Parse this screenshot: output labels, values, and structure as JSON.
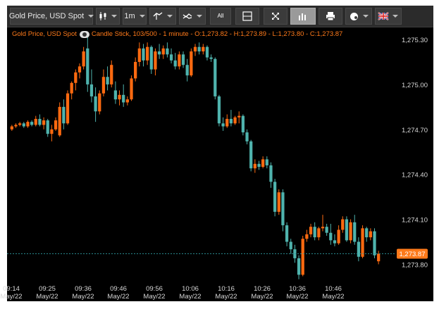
{
  "toolbar": {
    "instrument": "Gold Price, USD Spot",
    "candle_icon": "candlestick-icon",
    "interval": "1m",
    "indicators_icon": "indicators-icon",
    "compare_icon": "compare-icon",
    "fullscreen_label": "All",
    "crosshair_icon": "crosshair-icon",
    "expand_icon": "expand-icon",
    "bars_icon": "bar-chart-icon",
    "print_icon": "print-icon",
    "settings_icon": "palette-icon",
    "language_icon": "uk-flag-icon"
  },
  "legend": {
    "text_before": "Gold Price, USD Spot",
    "text_after": "Candle Stick, 103/500 - 1 minute - O:1,273.82 - H:1,273.89 - L:1,273.80 - C:1,273.87"
  },
  "colors": {
    "up": "#ff6a10",
    "down": "#4fb3ad",
    "grid": "#1a1a1a",
    "text": "#d8d8d8",
    "price_tag": "#ff7a1a"
  },
  "chart_data": {
    "type": "candlestick",
    "instrument": "Gold Price, USD Spot",
    "interval": "1 minute",
    "current_price": "1,273.87",
    "last_candle": {
      "open": 1273.82,
      "high": 1273.89,
      "low": 1273.8,
      "close": 1273.87
    },
    "y_ticks": [
      "1,275.30",
      "1,275.00",
      "1,274.70",
      "1,274.40",
      "1,274.10",
      "1,273.80"
    ],
    "y_tick_values": [
      1275.3,
      1275.0,
      1274.7,
      1274.4,
      1274.1,
      1273.8
    ],
    "ylim": [
      1273.68,
      1275.38
    ],
    "x_ticks": [
      {
        "time": "09:14",
        "date": "May/22"
      },
      {
        "time": "09:25",
        "date": "May/22"
      },
      {
        "time": "09:36",
        "date": "May/22"
      },
      {
        "time": "09:46",
        "date": "May/22"
      },
      {
        "time": "09:56",
        "date": "May/22"
      },
      {
        "time": "10:06",
        "date": "May/22"
      },
      {
        "time": "10:16",
        "date": "May/22"
      },
      {
        "time": "10:26",
        "date": "May/22"
      },
      {
        "time": "10:36",
        "date": "May/22"
      },
      {
        "time": "10:46",
        "date": "May/22"
      }
    ],
    "grid": false,
    "candles": [
      [
        1274.7,
        1274.73,
        1274.69,
        1274.72
      ],
      [
        1274.72,
        1274.74,
        1274.71,
        1274.73
      ],
      [
        1274.73,
        1274.75,
        1274.72,
        1274.74
      ],
      [
        1274.74,
        1274.75,
        1274.71,
        1274.72
      ],
      [
        1274.72,
        1274.76,
        1274.71,
        1274.75
      ],
      [
        1274.75,
        1274.76,
        1274.72,
        1274.73
      ],
      [
        1274.73,
        1274.79,
        1274.72,
        1274.77
      ],
      [
        1274.77,
        1274.8,
        1274.72,
        1274.73
      ],
      [
        1274.73,
        1274.78,
        1274.7,
        1274.76
      ],
      [
        1274.76,
        1274.77,
        1274.65,
        1274.67
      ],
      [
        1274.67,
        1274.73,
        1274.62,
        1274.7
      ],
      [
        1274.7,
        1274.78,
        1274.69,
        1274.76
      ],
      [
        1274.66,
        1274.88,
        1274.65,
        1274.85
      ],
      [
        1274.85,
        1274.9,
        1274.7,
        1274.74
      ],
      [
        1274.74,
        1274.96,
        1274.73,
        1274.94
      ],
      [
        1274.94,
        1275.02,
        1274.9,
        1275.01
      ],
      [
        1275.01,
        1275.1,
        1274.96,
        1275.08
      ],
      [
        1275.08,
        1275.14,
        1275.04,
        1275.12
      ],
      [
        1275.12,
        1275.25,
        1275.1,
        1275.22
      ],
      [
        1275.24,
        1275.35,
        1274.95,
        1275.0
      ],
      [
        1275.0,
        1275.1,
        1274.88,
        1274.92
      ],
      [
        1274.92,
        1274.98,
        1274.75,
        1274.82
      ],
      [
        1274.82,
        1274.96,
        1274.8,
        1274.94
      ],
      [
        1274.94,
        1275.1,
        1274.92,
        1275.05
      ],
      [
        1275.05,
        1275.12,
        1274.96,
        1275.0
      ],
      [
        1275.0,
        1275.16,
        1274.98,
        1275.13
      ],
      [
        1274.96,
        1275.02,
        1274.87,
        1274.9
      ],
      [
        1274.9,
        1274.96,
        1274.86,
        1274.93
      ],
      [
        1274.93,
        1275.0,
        1274.85,
        1274.88
      ],
      [
        1274.88,
        1274.92,
        1274.86,
        1274.9
      ],
      [
        1274.9,
        1275.06,
        1274.89,
        1275.04
      ],
      [
        1275.04,
        1275.18,
        1275.02,
        1275.15
      ],
      [
        1275.15,
        1275.28,
        1275.12,
        1275.24
      ],
      [
        1275.24,
        1275.27,
        1275.12,
        1275.16
      ],
      [
        1275.16,
        1275.28,
        1275.13,
        1275.25
      ],
      [
        1275.25,
        1275.26,
        1275.07,
        1275.1
      ],
      [
        1275.1,
        1275.24,
        1275.06,
        1275.22
      ],
      [
        1275.22,
        1275.27,
        1275.17,
        1275.2
      ],
      [
        1275.2,
        1275.26,
        1275.17,
        1275.24
      ],
      [
        1275.24,
        1275.28,
        1275.18,
        1275.2
      ],
      [
        1275.2,
        1275.24,
        1275.14,
        1275.16
      ],
      [
        1275.16,
        1275.21,
        1275.1,
        1275.12
      ],
      [
        1275.12,
        1275.22,
        1275.1,
        1275.2
      ],
      [
        1275.2,
        1275.22,
        1275.11,
        1275.13
      ],
      [
        1275.13,
        1275.17,
        1275.02,
        1275.06
      ],
      [
        1275.06,
        1275.24,
        1275.05,
        1275.22
      ],
      [
        1275.22,
        1275.27,
        1275.19,
        1275.25
      ],
      [
        1275.25,
        1275.28,
        1275.2,
        1275.22
      ],
      [
        1275.22,
        1275.27,
        1275.2,
        1275.25
      ],
      [
        1275.25,
        1275.26,
        1275.16,
        1275.18
      ],
      [
        1275.18,
        1275.2,
        1275.15,
        1275.17
      ],
      [
        1275.17,
        1275.18,
        1274.9,
        1274.92
      ],
      [
        1274.92,
        1274.93,
        1274.72,
        1274.74
      ],
      [
        1274.74,
        1274.78,
        1274.69,
        1274.72
      ],
      [
        1274.72,
        1274.8,
        1274.71,
        1274.77
      ],
      [
        1274.77,
        1274.83,
        1274.72,
        1274.74
      ],
      [
        1274.74,
        1274.79,
        1274.73,
        1274.78
      ],
      [
        1274.78,
        1274.82,
        1274.74,
        1274.79
      ],
      [
        1274.79,
        1274.8,
        1274.66,
        1274.68
      ],
      [
        1274.68,
        1274.7,
        1274.6,
        1274.62
      ],
      [
        1274.62,
        1274.63,
        1274.42,
        1274.44
      ],
      [
        1274.44,
        1274.5,
        1274.41,
        1274.47
      ],
      [
        1274.47,
        1274.49,
        1274.43,
        1274.45
      ],
      [
        1274.45,
        1274.52,
        1274.44,
        1274.5
      ],
      [
        1274.5,
        1274.52,
        1274.44,
        1274.46
      ],
      [
        1274.46,
        1274.48,
        1274.31,
        1274.35
      ],
      [
        1274.35,
        1274.37,
        1274.12,
        1274.15
      ],
      [
        1274.15,
        1274.3,
        1274.13,
        1274.28
      ],
      [
        1274.28,
        1274.3,
        1274.02,
        1274.06
      ],
      [
        1274.06,
        1274.08,
        1273.92,
        1273.95
      ],
      [
        1273.95,
        1273.97,
        1273.87,
        1273.9
      ],
      [
        1273.9,
        1273.93,
        1273.81,
        1273.84
      ],
      [
        1273.84,
        1273.86,
        1273.7,
        1273.73
      ],
      [
        1273.73,
        1273.99,
        1273.72,
        1273.97
      ],
      [
        1273.97,
        1274.03,
        1273.95,
        1274.0
      ],
      [
        1274.0,
        1274.07,
        1273.98,
        1274.05
      ],
      [
        1274.05,
        1274.08,
        1273.96,
        1273.98
      ],
      [
        1273.98,
        1274.05,
        1273.96,
        1274.04
      ],
      [
        1274.04,
        1274.13,
        1274.02,
        1274.05
      ],
      [
        1274.05,
        1274.07,
        1273.99,
        1274.01
      ],
      [
        1274.01,
        1274.07,
        1273.93,
        1273.96
      ],
      [
        1273.96,
        1274.0,
        1273.92,
        1273.94
      ],
      [
        1273.94,
        1274.06,
        1273.93,
        1274.03
      ],
      [
        1274.03,
        1274.12,
        1274.01,
        1274.1
      ],
      [
        1274.1,
        1274.12,
        1273.95,
        1273.96
      ],
      [
        1273.96,
        1274.1,
        1273.94,
        1274.08
      ],
      [
        1274.08,
        1274.13,
        1273.93,
        1273.95
      ],
      [
        1273.95,
        1273.98,
        1273.82,
        1273.85
      ],
      [
        1273.85,
        1274.06,
        1273.84,
        1274.04
      ],
      [
        1274.04,
        1274.05,
        1273.95,
        1273.98
      ],
      [
        1273.98,
        1274.04,
        1273.96,
        1274.02
      ],
      [
        1274.02,
        1274.04,
        1273.84,
        1273.86
      ],
      [
        1273.82,
        1273.89,
        1273.8,
        1273.87
      ]
    ]
  }
}
